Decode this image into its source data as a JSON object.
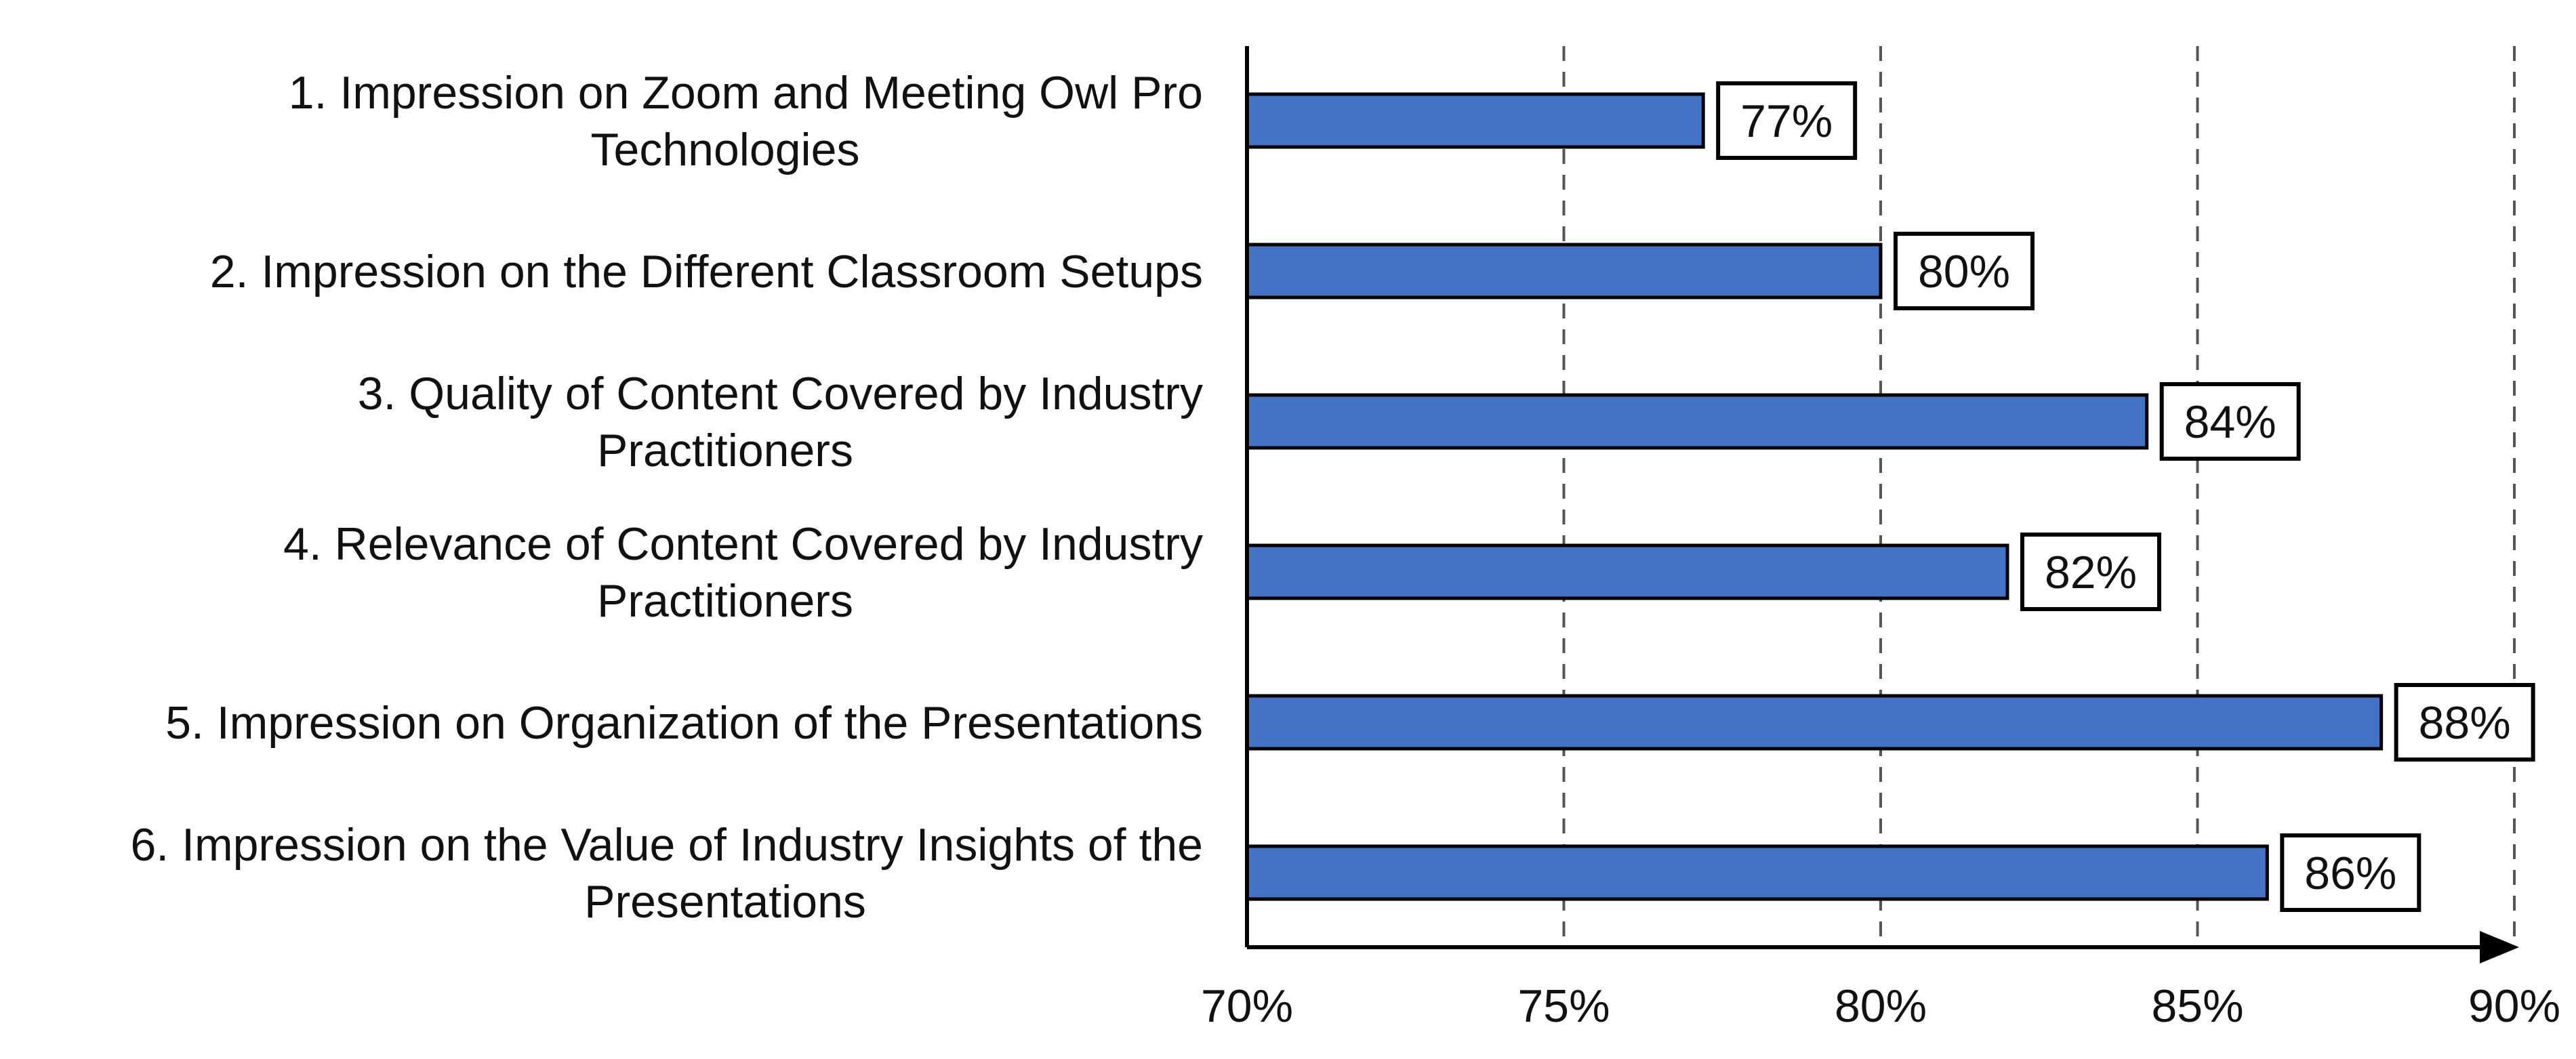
{
  "colors": {
    "bar_fill": "#4472C4",
    "bar_stroke": "#000000",
    "grid": "#555555",
    "axis": "#000000",
    "background": "#ffffff"
  },
  "chart_data": {
    "type": "bar",
    "orientation": "horizontal",
    "categories": [
      [
        "1. Impression on Zoom and Meeting Owl Pro",
        "Technologies"
      ],
      [
        "2. Impression on the Different Classroom Setups"
      ],
      [
        "3. Quality of Content Covered by Industry",
        "Practitioners"
      ],
      [
        "4. Relevance of Content Covered by Industry",
        "Practitioners"
      ],
      [
        "5. Impression on Organization of the Presentations"
      ],
      [
        "6. Impression on the Value of Industry Insights of the",
        "Presentations"
      ]
    ],
    "values": [
      77.2,
      80.0,
      84.2,
      82.0,
      87.9,
      86.1
    ],
    "data_labels": [
      "77%",
      "80%",
      "84%",
      "82%",
      "88%",
      "86%"
    ],
    "xlim": [
      70,
      90
    ],
    "x_ticks": [
      70,
      75,
      80,
      85,
      90
    ],
    "x_tick_labels": [
      "70%",
      "75%",
      "80%",
      "85%",
      "90%"
    ],
    "grid": "vertical dashed lines at 75%, 80%, 85%, 90%",
    "title": "",
    "xlabel": "",
    "ylabel": "",
    "legend": "none"
  }
}
